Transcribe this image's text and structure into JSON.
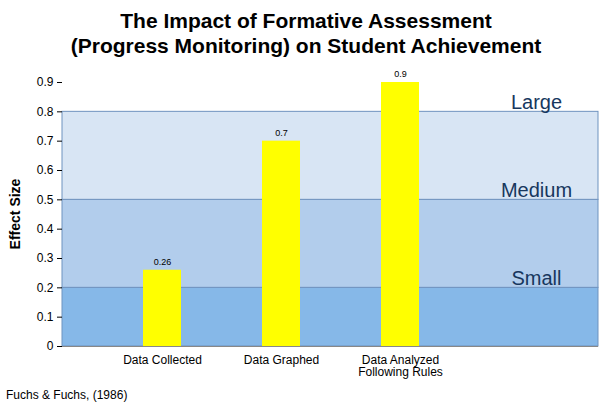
{
  "chart_data": {
    "type": "bar",
    "title": [
      "The Impact of Formative Assessment",
      "(Progress Monitoring) on Student Achievement"
    ],
    "y_label": "Effect Size",
    "categories": [
      "Data Collected",
      "Data Graphed",
      "Data Analyzed Following Rules"
    ],
    "values": [
      0.26,
      0.7,
      0.9
    ],
    "color": "#ffff00",
    "data_labels": true,
    "ylim": [
      0,
      0.9
    ],
    "yticks": [
      0,
      0.1,
      0.2,
      0.3,
      0.4,
      0.5,
      0.6,
      0.7,
      0.8,
      0.9
    ],
    "grid": false,
    "bands": [
      {
        "label": "Small",
        "from": 0,
        "to": 0.2
      },
      {
        "label": "Medium",
        "from": 0.2,
        "to": 0.5
      },
      {
        "label": "Large",
        "from": 0.5,
        "to": 0.8
      }
    ],
    "source": "Fuchs & Fuchs, (1986)"
  }
}
